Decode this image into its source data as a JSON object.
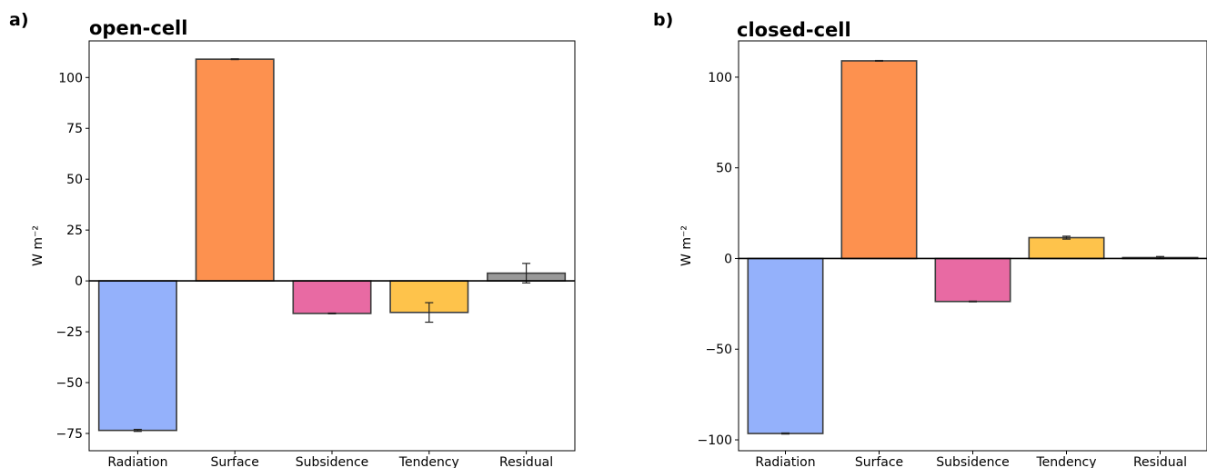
{
  "chart_data": [
    {
      "type": "bar",
      "panel": "a)",
      "title": "open-cell",
      "ylabel": "W m⁻²",
      "xlabel": "",
      "categories": [
        "Radiation",
        "Surface",
        "Subsidence",
        "Tendency",
        "Residual"
      ],
      "values": [
        -73.5,
        109,
        -16,
        -15.5,
        3.8
      ],
      "errors": [
        0.5,
        0.2,
        0.2,
        4.8,
        4.8
      ],
      "colors": [
        "#94b1fb",
        "#fd914f",
        "#e86aa3",
        "#fec34b",
        "#999999"
      ],
      "ylim": [
        -83.5,
        118
      ],
      "yticks": [
        -75,
        -50,
        -25,
        0,
        25,
        50,
        75,
        100
      ],
      "ytick_labels": [
        "−75",
        "−50",
        "−25",
        "0",
        "25",
        "50",
        "75",
        "100"
      ],
      "grid": false
    },
    {
      "type": "bar",
      "panel": "b)",
      "title": "closed-cell",
      "ylabel": "W m⁻²",
      "xlabel": "",
      "categories": [
        "Radiation",
        "Surface",
        "Subsidence",
        "Tendency",
        "Residual"
      ],
      "values": [
        -96.5,
        109,
        -23.7,
        11.5,
        0.5
      ],
      "errors": [
        0.3,
        0.2,
        0.2,
        0.8,
        0.6
      ],
      "colors": [
        "#94b1fb",
        "#fd914f",
        "#e86aa3",
        "#fec34b",
        "#999999"
      ],
      "ylim": [
        -106,
        120
      ],
      "yticks": [
        -100,
        -50,
        0,
        50,
        100
      ],
      "ytick_labels": [
        "−100",
        "−50",
        "0",
        "50",
        "100"
      ],
      "grid": false
    }
  ]
}
